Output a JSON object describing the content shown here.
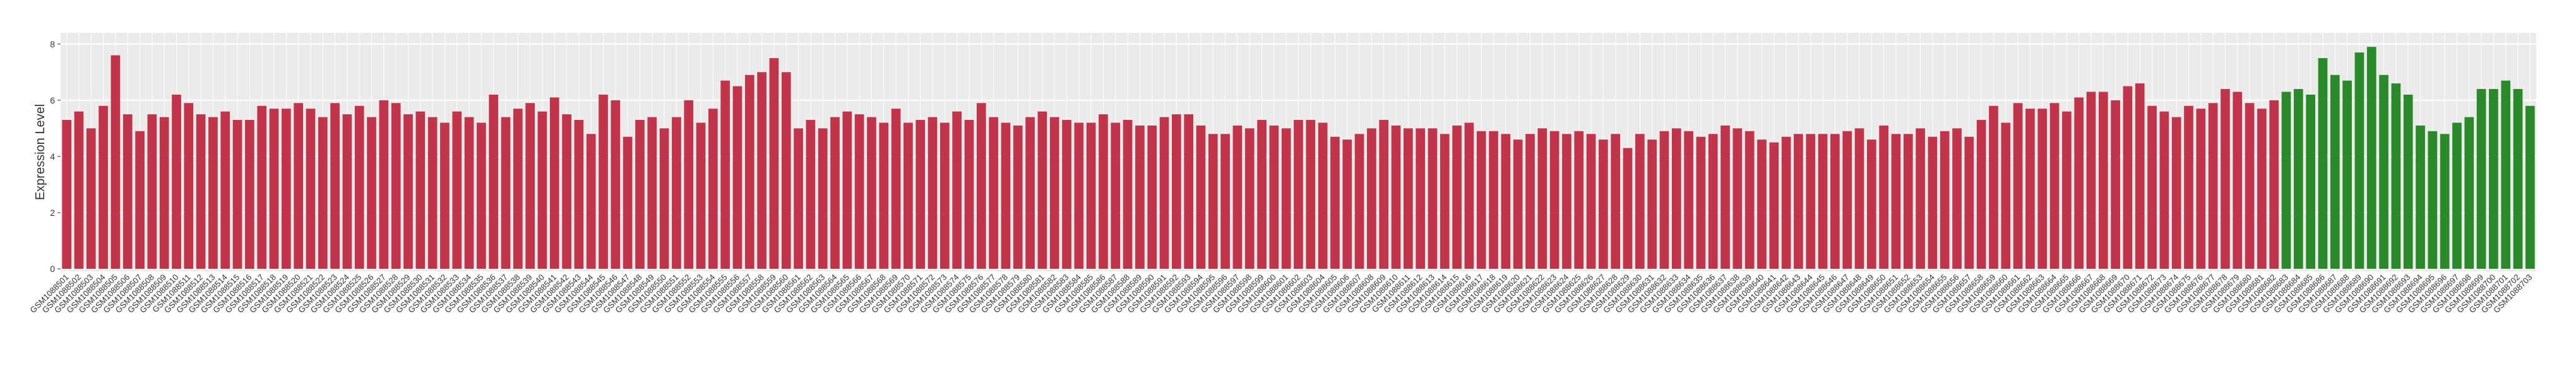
{
  "chart_data": {
    "type": "bar",
    "ylabel": "Expression Level",
    "ylim": [
      0,
      8.4
    ],
    "yticks": [
      0,
      2,
      4,
      6,
      8
    ],
    "grid": true,
    "series": [
      {
        "color": "#c1344a",
        "categories": [
          "GSM1088501",
          "GSM1088502",
          "GSM1088503",
          "GSM1088504",
          "GSM1088505",
          "GSM1088506",
          "GSM1088507",
          "GSM1088508",
          "GSM1088509",
          "GSM1088510",
          "GSM1088511",
          "GSM1088512",
          "GSM1088513",
          "GSM1088514",
          "GSM1088515",
          "GSM1088516",
          "GSM1088517",
          "GSM1088518",
          "GSM1088519",
          "GSM1088520",
          "GSM1088521",
          "GSM1088522",
          "GSM1088523",
          "GSM1088524",
          "GSM1088525",
          "GSM1088526",
          "GSM1088527",
          "GSM1088528",
          "GSM1088529",
          "GSM1088530",
          "GSM1088531",
          "GSM1088532",
          "GSM1088533",
          "GSM1088534",
          "GSM1088535",
          "GSM1088536",
          "GSM1088537",
          "GSM1088538",
          "GSM1088539",
          "GSM1088540",
          "GSM1088541",
          "GSM1088542",
          "GSM1088543",
          "GSM1088544",
          "GSM1088545",
          "GSM1088546",
          "GSM1088547",
          "GSM1088548",
          "GSM1088549",
          "GSM1088550",
          "GSM1088551",
          "GSM1088552",
          "GSM1088553",
          "GSM1088554",
          "GSM1088555",
          "GSM1088556",
          "GSM1088557",
          "GSM1088558",
          "GSM1088559",
          "GSM1088560",
          "GSM1088561",
          "GSM1088562",
          "GSM1088563",
          "GSM1088564",
          "GSM1088565",
          "GSM1088566",
          "GSM1088567",
          "GSM1088568",
          "GSM1088569",
          "GSM1088570",
          "GSM1088571",
          "GSM1088572",
          "GSM1088573",
          "GSM1088574",
          "GSM1088575",
          "GSM1088576",
          "GSM1088577",
          "GSM1088578",
          "GSM1088579",
          "GSM1088580",
          "GSM1088581",
          "GSM1088582",
          "GSM1088583",
          "GSM1088584",
          "GSM1088585",
          "GSM1088586",
          "GSM1088587",
          "GSM1088588",
          "GSM1088589",
          "GSM1088590",
          "GSM1088591",
          "GSM1088592",
          "GSM1088593",
          "GSM1088594",
          "GSM1088595",
          "GSM1088596",
          "GSM1088597",
          "GSM1088598",
          "GSM1088599",
          "GSM1088600",
          "GSM1088601",
          "GSM1088602",
          "GSM1088603",
          "GSM1088604",
          "GSM1088605",
          "GSM1088606",
          "GSM1088607",
          "GSM1088608",
          "GSM1088609",
          "GSM1088610",
          "GSM1088611",
          "GSM1088612",
          "GSM1088613",
          "GSM1088614",
          "GSM1088615",
          "GSM1088616",
          "GSM1088617",
          "GSM1088618",
          "GSM1088619",
          "GSM1088620",
          "GSM1088621",
          "GSM1088622",
          "GSM1088623",
          "GSM1088624",
          "GSM1088625",
          "GSM1088626",
          "GSM1088627",
          "GSM1088628",
          "GSM1088629",
          "GSM1088630",
          "GSM1088631",
          "GSM1088632",
          "GSM1088633",
          "GSM1088634",
          "GSM1088635",
          "GSM1088636",
          "GSM1088637",
          "GSM1088638",
          "GSM1088639",
          "GSM1088640",
          "GSM1088641",
          "GSM1088642",
          "GSM1088643",
          "GSM1088644",
          "GSM1088645",
          "GSM1088646",
          "GSM1088647",
          "GSM1088648",
          "GSM1088649",
          "GSM1088650",
          "GSM1088651",
          "GSM1088652",
          "GSM1088653",
          "GSM1088654",
          "GSM1088655",
          "GSM1088656",
          "GSM1088657",
          "GSM1088658",
          "GSM1088659",
          "GSM1088660",
          "GSM1088661",
          "GSM1088662",
          "GSM1088663",
          "GSM1088664",
          "GSM1088665",
          "GSM1088666",
          "GSM1088667",
          "GSM1088668",
          "GSM1088669",
          "GSM1088670",
          "GSM1088671",
          "GSM1088672",
          "GSM1088673",
          "GSM1088674",
          "GSM1088675",
          "GSM1088676",
          "GSM1088677",
          "GSM1088678",
          "GSM1088679",
          "GSM1088680",
          "GSM1088681",
          "GSM1088682"
        ],
        "values": [
          5.3,
          5.6,
          5.0,
          5.8,
          7.6,
          5.5,
          4.9,
          5.5,
          5.4,
          6.2,
          5.9,
          5.5,
          5.4,
          5.6,
          5.3,
          5.3,
          5.8,
          5.7,
          5.7,
          5.9,
          5.7,
          5.4,
          5.9,
          5.5,
          5.8,
          5.4,
          6.0,
          5.9,
          5.5,
          5.6,
          5.4,
          5.2,
          5.6,
          5.4,
          5.2,
          6.2,
          5.4,
          5.7,
          5.9,
          5.6,
          6.1,
          5.5,
          5.3,
          4.8,
          6.2,
          6.0,
          4.7,
          5.3,
          5.4,
          5.0,
          5.4,
          6.0,
          5.2,
          5.7,
          6.7,
          6.5,
          6.9,
          7.0,
          7.5,
          7.0,
          5.0,
          5.3,
          5.0,
          5.4,
          5.6,
          5.5,
          5.4,
          5.2,
          5.7,
          5.2,
          5.3,
          5.4,
          5.2,
          5.6,
          5.3,
          5.9,
          5.4,
          5.2,
          5.1,
          5.4,
          5.6,
          5.4,
          5.3,
          5.2,
          5.2,
          5.5,
          5.2,
          5.3,
          5.1,
          5.1,
          5.4,
          5.5,
          5.5,
          5.1,
          4.8,
          4.8,
          5.1,
          5.0,
          5.3,
          5.1,
          5.0,
          5.3,
          5.3,
          5.2,
          4.7,
          4.6,
          4.8,
          5.0,
          5.3,
          5.1,
          5.0,
          5.0,
          5.0,
          4.8,
          5.1,
          5.2,
          4.9,
          4.9,
          4.8,
          4.6,
          4.8,
          5.0,
          4.9,
          4.8,
          4.9,
          4.8,
          4.6,
          4.8,
          4.3,
          4.8,
          4.6,
          4.9,
          5.0,
          4.9,
          4.7,
          4.8,
          5.1,
          5.0,
          4.9,
          4.6,
          4.5,
          4.7,
          4.8,
          4.8,
          4.8,
          4.8,
          4.9,
          5.0,
          4.6,
          5.1,
          4.8,
          4.8,
          5.0,
          4.7,
          4.9,
          5.0,
          4.7,
          5.3,
          5.8,
          5.2,
          5.9,
          5.7,
          5.7,
          5.9,
          5.6,
          6.1,
          6.3,
          6.3,
          6.0,
          6.5,
          6.6,
          5.8,
          5.6,
          5.4,
          5.8,
          5.7,
          5.9,
          6.4,
          6.3,
          5.9,
          5.7,
          6.0
        ]
      },
      {
        "color": "#2a8a2a",
        "categories": [
          "GSM1088683",
          "GSM1088684",
          "GSM1088685",
          "GSM1088686",
          "GSM1088687",
          "GSM1088688",
          "GSM1088689",
          "GSM1088690",
          "GSM1088691",
          "GSM1088692",
          "GSM1088693",
          "GSM1088694",
          "GSM1088695",
          "GSM1088696",
          "GSM1088697",
          "GSM1088698",
          "GSM1088699",
          "GSM1088700",
          "GSM1088701",
          "GSM1088702",
          "GSM1088703"
        ],
        "values": [
          6.3,
          6.4,
          6.2,
          7.5,
          6.9,
          6.7,
          7.7,
          7.9,
          6.9,
          6.6,
          6.2,
          5.1,
          4.9,
          4.8,
          5.2,
          5.4,
          6.4,
          6.4,
          6.7,
          6.4,
          5.8
        ]
      }
    ]
  }
}
